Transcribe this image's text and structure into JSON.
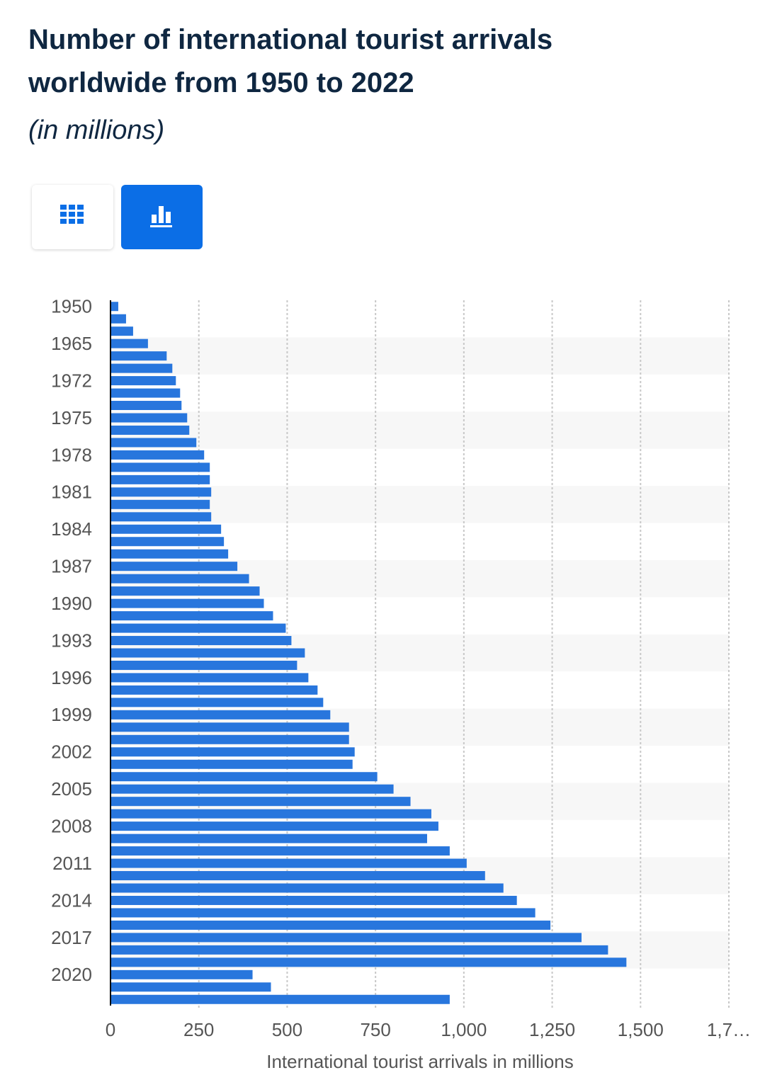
{
  "title": "Number of international tourist arrivals worldwide from 1950 to 2022",
  "subtitle": "(in millions)",
  "chart_data": {
    "type": "bar",
    "orientation": "horizontal",
    "categories": [
      "1950",
      null,
      null,
      "1965",
      null,
      null,
      "1972",
      null,
      null,
      "1975",
      null,
      null,
      "1978",
      null,
      null,
      "1981",
      null,
      null,
      "1984",
      null,
      null,
      "1987",
      null,
      null,
      "1990",
      null,
      null,
      "1993",
      null,
      null,
      "1996",
      null,
      null,
      "1999",
      null,
      null,
      "2002",
      null,
      null,
      "2005",
      null,
      null,
      "2008",
      null,
      null,
      "2011",
      null,
      null,
      "2014",
      null,
      null,
      "2017",
      null,
      null,
      "2020",
      null,
      null
    ],
    "values": [
      22,
      44,
      64,
      106,
      159,
      175,
      185,
      197,
      201,
      217,
      223,
      243,
      265,
      281,
      281,
      285,
      281,
      285,
      313,
      321,
      333,
      359,
      392,
      422,
      434,
      460,
      496,
      512,
      550,
      528,
      560,
      586,
      602,
      622,
      675,
      675,
      691,
      685,
      755,
      801,
      849,
      908,
      928,
      896,
      960,
      1008,
      1060,
      1112,
      1150,
      1202,
      1245,
      1333,
      1408,
      1460,
      402,
      454,
      960
    ],
    "color": "#2876dd",
    "xlim": [
      0,
      1750
    ],
    "xticks": [
      0,
      250,
      500,
      750,
      {
        "value": 1000,
        "label": "1,000"
      },
      {
        "value": 1250,
        "label": "1,250"
      },
      {
        "value": 1500,
        "label": "1,500"
      },
      {
        "value": 1750,
        "label": "1,7…"
      }
    ],
    "xlabel": "International tourist arrivals in millions",
    "grid": true
  }
}
